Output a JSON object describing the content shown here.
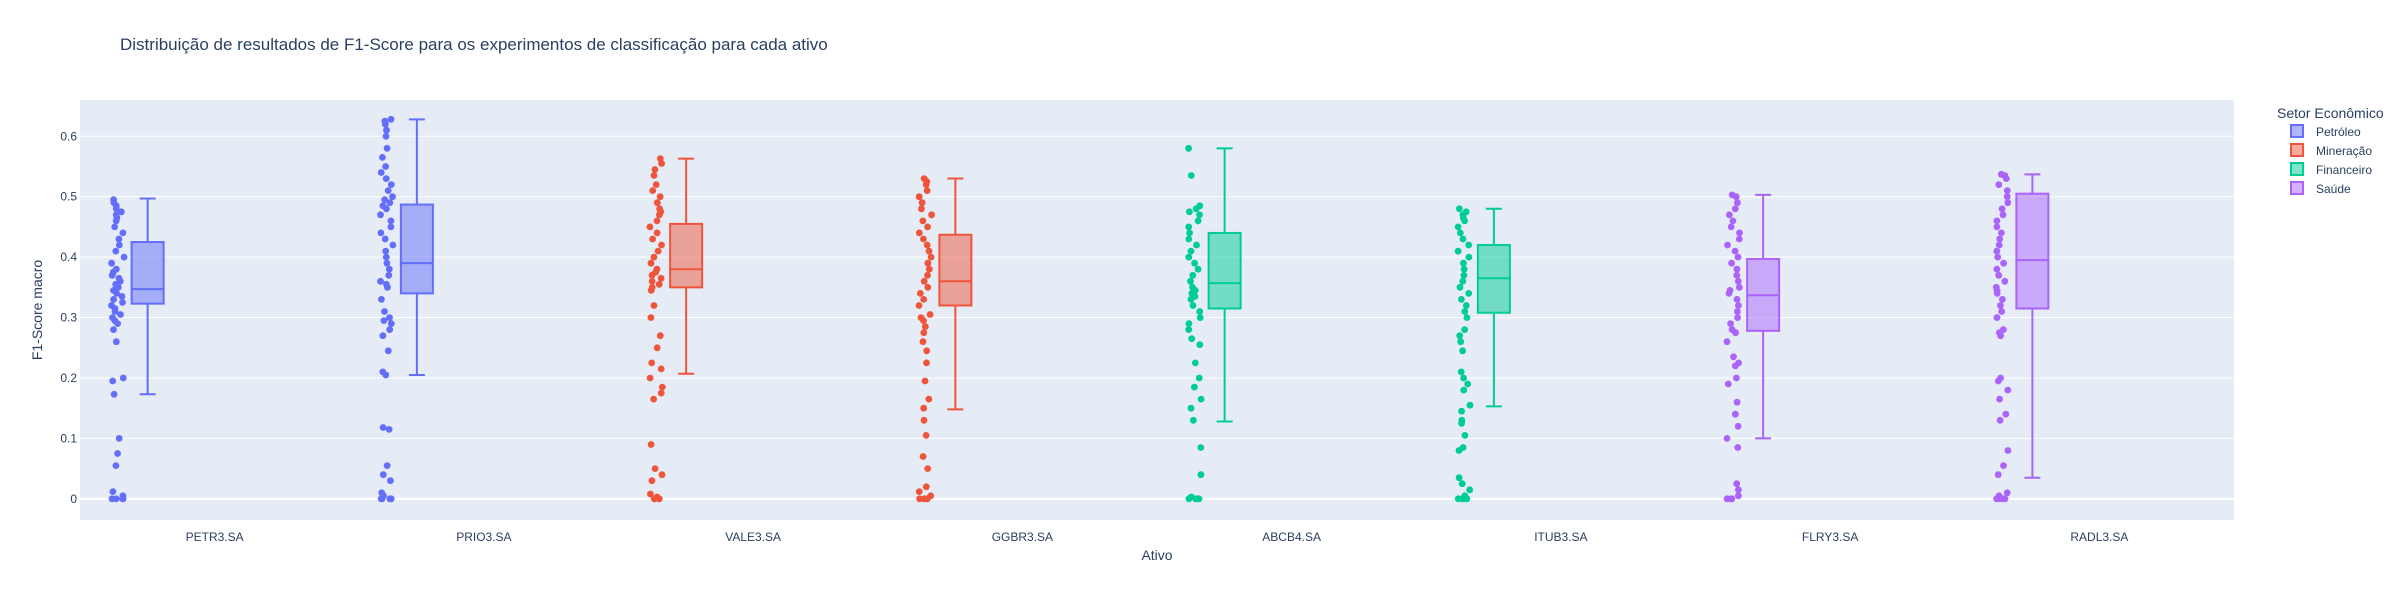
{
  "chart_data": {
    "type": "box",
    "title": "Distribuição de resultados de F1-Score para os experimentos de classificação para cada ativo",
    "xlabel": "Ativo",
    "ylabel": "F1-Score macro",
    "ylim": [
      -0.035,
      0.66
    ],
    "yticks": [
      0,
      0.1,
      0.2,
      0.3,
      0.4,
      0.5,
      0.6
    ],
    "ytick_labels": [
      "0",
      "0.1",
      "0.2",
      "0.3",
      "0.4",
      "0.5",
      "0.6"
    ],
    "categories": [
      "PETR3.SA",
      "PRIO3.SA",
      "VALE3.SA",
      "GGBR3.SA",
      "ABCB4.SA",
      "ITUB3.SA",
      "FLRY3.SA",
      "RADL3.SA"
    ],
    "legend": {
      "title": "Setor Econômico",
      "placement": "top-right",
      "entries": [
        {
          "name": "Petróleo",
          "color": "#636efa"
        },
        {
          "name": "Mineração",
          "color": "#ef553b"
        },
        {
          "name": "Financeiro",
          "color": "#00cc96"
        },
        {
          "name": "Saúde",
          "color": "#ab63fa"
        }
      ]
    },
    "boxes": [
      {
        "category": "PETR3.SA",
        "sector": "Petróleo",
        "color": "#636efa",
        "q1": 0.323,
        "median": 0.347,
        "q3": 0.425,
        "lower_fence": 0.173,
        "upper_fence": 0.497,
        "points": [
          0,
          0,
          0,
          0,
          0.005,
          0.012,
          0.055,
          0.075,
          0.1,
          0.173,
          0.195,
          0.2,
          0.26,
          0.28,
          0.29,
          0.295,
          0.3,
          0.305,
          0.31,
          0.315,
          0.32,
          0.325,
          0.33,
          0.335,
          0.34,
          0.345,
          0.35,
          0.355,
          0.36,
          0.365,
          0.37,
          0.375,
          0.38,
          0.39,
          0.4,
          0.41,
          0.42,
          0.43,
          0.44,
          0.45,
          0.46,
          0.465,
          0.47,
          0.475,
          0.48,
          0.485,
          0.49,
          0.495
        ]
      },
      {
        "category": "PRIO3.SA",
        "sector": "Petróleo",
        "color": "#636efa",
        "q1": 0.34,
        "median": 0.39,
        "q3": 0.487,
        "lower_fence": 0.205,
        "upper_fence": 0.628,
        "points": [
          0,
          0,
          0,
          0,
          0.005,
          0.01,
          0.03,
          0.04,
          0.055,
          0.115,
          0.118,
          0.205,
          0.21,
          0.245,
          0.27,
          0.28,
          0.29,
          0.295,
          0.3,
          0.31,
          0.33,
          0.35,
          0.355,
          0.36,
          0.37,
          0.38,
          0.39,
          0.4,
          0.41,
          0.42,
          0.43,
          0.44,
          0.45,
          0.46,
          0.47,
          0.48,
          0.485,
          0.49,
          0.495,
          0.5,
          0.51,
          0.52,
          0.53,
          0.54,
          0.55,
          0.565,
          0.58,
          0.6,
          0.61,
          0.62,
          0.625,
          0.628
        ]
      },
      {
        "category": "VALE3.SA",
        "sector": "Mineração",
        "color": "#ef553b",
        "q1": 0.35,
        "median": 0.38,
        "q3": 0.455,
        "lower_fence": 0.207,
        "upper_fence": 0.563,
        "points": [
          0,
          0,
          0,
          0,
          0.003,
          0.008,
          0.03,
          0.04,
          0.05,
          0.09,
          0.165,
          0.175,
          0.185,
          0.2,
          0.215,
          0.225,
          0.25,
          0.27,
          0.3,
          0.32,
          0.345,
          0.35,
          0.355,
          0.36,
          0.365,
          0.37,
          0.375,
          0.38,
          0.39,
          0.4,
          0.41,
          0.42,
          0.43,
          0.44,
          0.45,
          0.46,
          0.47,
          0.475,
          0.48,
          0.49,
          0.5,
          0.51,
          0.52,
          0.535,
          0.545,
          0.555,
          0.563
        ]
      },
      {
        "category": "GGBR3.SA",
        "sector": "Mineração",
        "color": "#ef553b",
        "q1": 0.32,
        "median": 0.36,
        "q3": 0.437,
        "lower_fence": 0.148,
        "upper_fence": 0.53,
        "points": [
          0,
          0,
          0,
          0,
          0.005,
          0.012,
          0.02,
          0.05,
          0.07,
          0.105,
          0.13,
          0.15,
          0.165,
          0.195,
          0.225,
          0.245,
          0.26,
          0.275,
          0.285,
          0.295,
          0.3,
          0.305,
          0.32,
          0.33,
          0.34,
          0.35,
          0.36,
          0.37,
          0.38,
          0.39,
          0.4,
          0.41,
          0.42,
          0.43,
          0.44,
          0.45,
          0.46,
          0.47,
          0.48,
          0.49,
          0.5,
          0.51,
          0.52,
          0.525,
          0.53
        ]
      },
      {
        "category": "ABCB4.SA",
        "sector": "Financeiro",
        "color": "#00cc96",
        "q1": 0.315,
        "median": 0.357,
        "q3": 0.44,
        "lower_fence": 0.128,
        "upper_fence": 0.58,
        "points": [
          0,
          0,
          0,
          0,
          0.003,
          0.04,
          0.085,
          0.13,
          0.15,
          0.165,
          0.185,
          0.2,
          0.225,
          0.255,
          0.265,
          0.28,
          0.29,
          0.3,
          0.31,
          0.32,
          0.33,
          0.335,
          0.34,
          0.345,
          0.35,
          0.36,
          0.37,
          0.38,
          0.39,
          0.4,
          0.41,
          0.42,
          0.43,
          0.44,
          0.45,
          0.46,
          0.47,
          0.475,
          0.48,
          0.485,
          0.535,
          0.58
        ]
      },
      {
        "category": "ITUB3.SA",
        "sector": "Financeiro",
        "color": "#00cc96",
        "q1": 0.308,
        "median": 0.365,
        "q3": 0.42,
        "lower_fence": 0.153,
        "upper_fence": 0.48,
        "points": [
          0,
          0,
          0,
          0,
          0.005,
          0.015,
          0.025,
          0.035,
          0.08,
          0.085,
          0.105,
          0.125,
          0.13,
          0.145,
          0.155,
          0.18,
          0.19,
          0.2,
          0.21,
          0.245,
          0.26,
          0.27,
          0.28,
          0.3,
          0.31,
          0.32,
          0.33,
          0.34,
          0.35,
          0.36,
          0.37,
          0.38,
          0.39,
          0.4,
          0.41,
          0.42,
          0.43,
          0.44,
          0.45,
          0.46,
          0.465,
          0.47,
          0.475,
          0.48
        ]
      },
      {
        "category": "FLRY3.SA",
        "sector": "Saúde",
        "color": "#ab63fa",
        "q1": 0.278,
        "median": 0.337,
        "q3": 0.397,
        "lower_fence": 0.1,
        "upper_fence": 0.503,
        "points": [
          0,
          0,
          0,
          0,
          0.005,
          0.015,
          0.025,
          0.085,
          0.1,
          0.12,
          0.14,
          0.16,
          0.19,
          0.2,
          0.22,
          0.225,
          0.235,
          0.26,
          0.275,
          0.28,
          0.29,
          0.3,
          0.31,
          0.32,
          0.33,
          0.34,
          0.345,
          0.35,
          0.36,
          0.37,
          0.38,
          0.39,
          0.4,
          0.41,
          0.42,
          0.43,
          0.44,
          0.45,
          0.46,
          0.47,
          0.48,
          0.49,
          0.5,
          0.503
        ]
      },
      {
        "category": "RADL3.SA",
        "sector": "Saúde",
        "color": "#ab63fa",
        "q1": 0.315,
        "median": 0.395,
        "q3": 0.505,
        "lower_fence": 0.035,
        "upper_fence": 0.537,
        "points": [
          0,
          0,
          0,
          0,
          0.005,
          0.01,
          0.04,
          0.055,
          0.08,
          0.13,
          0.14,
          0.165,
          0.18,
          0.195,
          0.2,
          0.27,
          0.275,
          0.28,
          0.3,
          0.31,
          0.32,
          0.33,
          0.34,
          0.345,
          0.35,
          0.36,
          0.37,
          0.38,
          0.39,
          0.4,
          0.41,
          0.42,
          0.43,
          0.44,
          0.45,
          0.46,
          0.47,
          0.48,
          0.49,
          0.5,
          0.51,
          0.52,
          0.53,
          0.535,
          0.537
        ]
      }
    ]
  }
}
